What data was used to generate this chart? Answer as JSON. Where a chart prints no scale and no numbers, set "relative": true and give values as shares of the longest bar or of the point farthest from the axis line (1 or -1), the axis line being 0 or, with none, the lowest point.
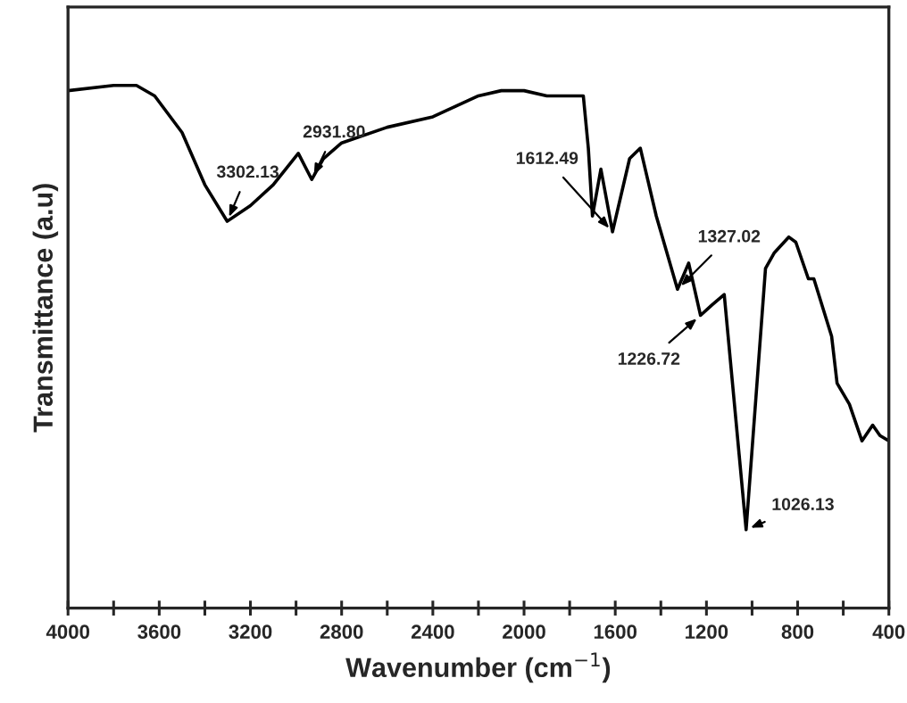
{
  "chart_data": {
    "type": "line",
    "xlabel": "Wavenumber (cm$^{−1}$)",
    "ylabel": "Transmittance (a.u)",
    "relative": true,
    "xlim": [
      4000,
      400
    ],
    "xticks": [
      4000,
      {
        "value": 3800,
        "label": null
      },
      3600,
      {
        "value": 3400,
        "label": null
      },
      3200,
      {
        "value": 3000,
        "label": null
      },
      2800,
      {
        "value": 2600,
        "label": null
      },
      2400,
      {
        "value": 2200,
        "label": null
      },
      2000,
      {
        "value": 1800,
        "label": null
      },
      1600,
      {
        "value": 1400,
        "label": null
      },
      1200,
      {
        "value": 1000,
        "label": null
      },
      800,
      {
        "value": 600,
        "label": null
      },
      400
    ],
    "grid": false,
    "legend": false,
    "marker": "none",
    "line_style": "solid",
    "series": [
      {
        "color": "#000000",
        "x": [
          4000,
          3800,
          3700,
          3620,
          3500,
          3400,
          3302,
          3200,
          3100,
          2990,
          2931,
          2880,
          2800,
          2600,
          2400,
          2300,
          2200,
          2100,
          2000,
          1900,
          1800,
          1740,
          1718,
          1700,
          1663,
          1612,
          1537,
          1490,
          1420,
          1327,
          1278,
          1226,
          1176,
          1122,
          1026,
          941,
          902,
          839,
          808,
          753,
          729,
          651,
          627,
          573,
          518,
          471,
          439,
          400
        ],
        "values": [
          0.99,
          1.0,
          1.0,
          0.98,
          0.91,
          0.81,
          0.74,
          0.77,
          0.81,
          0.87,
          0.82,
          0.86,
          0.89,
          0.92,
          0.94,
          0.96,
          0.98,
          0.99,
          0.99,
          0.98,
          0.98,
          0.98,
          0.88,
          0.75,
          0.84,
          0.72,
          0.86,
          0.88,
          0.75,
          0.61,
          0.66,
          0.56,
          0.58,
          0.6,
          0.15,
          0.65,
          0.68,
          0.71,
          0.7,
          0.63,
          0.63,
          0.52,
          0.43,
          0.39,
          0.32,
          0.35,
          0.33,
          0.32
        ]
      }
    ],
    "annotations": [
      {
        "text": "3302.13",
        "x": 3302,
        "y": 0.74
      },
      {
        "text": "2931.80",
        "x": 2931,
        "y": 0.82
      },
      {
        "text": "1612.49",
        "x": 1612,
        "y": 0.72
      },
      {
        "text": "1327.02",
        "x": 1327,
        "y": 0.61
      },
      {
        "text": "1226.72",
        "x": 1226,
        "y": 0.56
      },
      {
        "text": "1026.13",
        "x": 1026,
        "y": 0.15
      }
    ]
  }
}
